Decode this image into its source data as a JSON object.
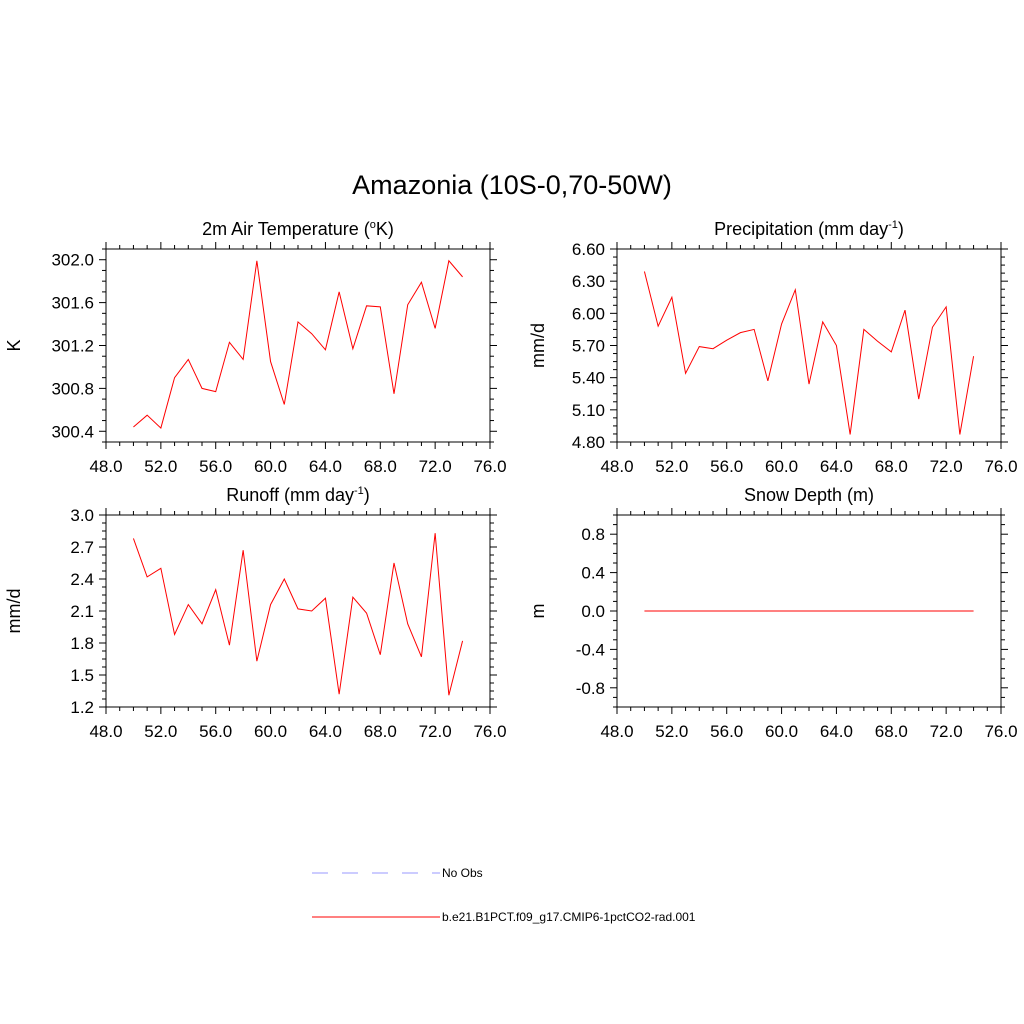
{
  "figure": {
    "title": "Amazonia (10S-0,70-50W)",
    "legend": {
      "entries": [
        {
          "label": "No Obs",
          "color": "#9999ff",
          "dash": true
        },
        {
          "label": "b.e21.B1PCT.f09_g17.CMIP6-1pctCO2-rad.001",
          "color": "#ff0000",
          "dash": false
        }
      ]
    }
  },
  "chart_data": [
    {
      "type": "line",
      "title": "2m Air Temperature (",
      "title_sup": "o",
      "title_tail": "K)",
      "ylabel": "K",
      "xlim": [
        48,
        76
      ],
      "ylim": [
        300.3,
        302.1
      ],
      "xticks": [
        48.0,
        52.0,
        56.0,
        60.0,
        64.0,
        68.0,
        72.0,
        76.0
      ],
      "xtick_labels": [
        "48.0",
        "52.0",
        "56.0",
        "60.0",
        "64.0",
        "68.0",
        "72.0",
        "76.0"
      ],
      "yticks": [
        300.4,
        300.8,
        301.2,
        301.6,
        302.0
      ],
      "ytick_labels": [
        "300.4",
        "300.8",
        "301.2",
        "301.6",
        "302.0"
      ],
      "series": [
        {
          "name": "b.e21.B1PCT.f09_g17.CMIP6-1pctCO2-rad.001",
          "color": "#ff0000",
          "x": [
            50,
            51,
            52,
            53,
            54,
            55,
            56,
            57,
            58,
            59,
            60,
            61,
            62,
            63,
            64,
            65,
            66,
            67,
            68,
            69,
            70,
            71,
            72,
            73,
            74
          ],
          "y": [
            300.44,
            300.55,
            300.43,
            300.9,
            301.07,
            300.8,
            300.77,
            301.23,
            301.07,
            301.99,
            301.05,
            300.65,
            301.42,
            301.31,
            301.16,
            301.7,
            301.17,
            301.57,
            301.56,
            300.75,
            301.58,
            301.79,
            301.36,
            301.99,
            301.84
          ]
        }
      ]
    },
    {
      "type": "line",
      "title": "Precipitation (mm day",
      "title_sup": "-1",
      "title_tail": ")",
      "ylabel": "mm/d",
      "xlim": [
        48,
        76
      ],
      "ylim": [
        4.8,
        6.6
      ],
      "xticks": [
        48.0,
        52.0,
        56.0,
        60.0,
        64.0,
        68.0,
        72.0,
        76.0
      ],
      "xtick_labels": [
        "48.0",
        "52.0",
        "56.0",
        "60.0",
        "64.0",
        "68.0",
        "72.0",
        "76.0"
      ],
      "yticks": [
        4.8,
        5.1,
        5.4,
        5.7,
        6.0,
        6.3,
        6.6
      ],
      "ytick_labels": [
        "4.80",
        "5.10",
        "5.40",
        "5.70",
        "6.00",
        "6.30",
        "6.60"
      ],
      "series": [
        {
          "name": "b.e21.B1PCT.f09_g17.CMIP6-1pctCO2-rad.001",
          "color": "#ff0000",
          "x": [
            50,
            51,
            52,
            53,
            54,
            55,
            56,
            57,
            58,
            59,
            60,
            61,
            62,
            63,
            64,
            65,
            66,
            67,
            68,
            69,
            70,
            71,
            72,
            73,
            74
          ],
          "y": [
            6.39,
            5.88,
            6.15,
            5.44,
            5.69,
            5.67,
            5.75,
            5.82,
            5.85,
            5.37,
            5.9,
            6.22,
            5.34,
            5.92,
            5.7,
            4.87,
            5.85,
            5.74,
            5.64,
            6.03,
            5.2,
            5.87,
            6.06,
            4.87,
            5.6
          ]
        }
      ]
    },
    {
      "type": "line",
      "title": "Runoff (mm day",
      "title_sup": "-1",
      "title_tail": ")",
      "ylabel": "mm/d",
      "xlim": [
        48,
        76
      ],
      "ylim": [
        1.2,
        3.0
      ],
      "xticks": [
        48.0,
        52.0,
        56.0,
        60.0,
        64.0,
        68.0,
        72.0,
        76.0
      ],
      "xtick_labels": [
        "48.0",
        "52.0",
        "56.0",
        "60.0",
        "64.0",
        "68.0",
        "72.0",
        "76.0"
      ],
      "yticks": [
        1.2,
        1.5,
        1.8,
        2.1,
        2.4,
        2.7,
        3.0
      ],
      "ytick_labels": [
        "1.2",
        "1.5",
        "1.8",
        "2.1",
        "2.4",
        "2.7",
        "3.0"
      ],
      "series": [
        {
          "name": "b.e21.B1PCT.f09_g17.CMIP6-1pctCO2-rad.001",
          "color": "#ff0000",
          "x": [
            50,
            51,
            52,
            53,
            54,
            55,
            56,
            57,
            58,
            59,
            60,
            61,
            62,
            63,
            64,
            65,
            66,
            67,
            68,
            69,
            70,
            71,
            72,
            73,
            74
          ],
          "y": [
            2.78,
            2.42,
            2.5,
            1.88,
            2.16,
            1.98,
            2.3,
            1.78,
            2.67,
            1.63,
            2.16,
            2.4,
            2.12,
            2.1,
            2.22,
            1.32,
            2.23,
            2.08,
            1.69,
            2.55,
            1.98,
            1.67,
            2.83,
            1.31,
            1.82
          ]
        }
      ]
    },
    {
      "type": "line",
      "title": "Snow Depth (m)",
      "title_sup": "",
      "title_tail": "",
      "ylabel": "m",
      "xlim": [
        48,
        76
      ],
      "ylim": [
        -1.0,
        1.0
      ],
      "xticks": [
        48.0,
        52.0,
        56.0,
        60.0,
        64.0,
        68.0,
        72.0,
        76.0
      ],
      "xtick_labels": [
        "48.0",
        "52.0",
        "56.0",
        "60.0",
        "64.0",
        "68.0",
        "72.0",
        "76.0"
      ],
      "yticks": [
        -0.8,
        -0.4,
        0.0,
        0.4,
        0.8
      ],
      "ytick_labels": [
        "-0.8",
        "-0.4",
        "0.0",
        "0.4",
        "0.8"
      ],
      "series": [
        {
          "name": "b.e21.B1PCT.f09_g17.CMIP6-1pctCO2-rad.001",
          "color": "#ff0000",
          "x": [
            50,
            51,
            52,
            53,
            54,
            55,
            56,
            57,
            58,
            59,
            60,
            61,
            62,
            63,
            64,
            65,
            66,
            67,
            68,
            69,
            70,
            71,
            72,
            73,
            74
          ],
          "y": [
            0,
            0,
            0,
            0,
            0,
            0,
            0,
            0,
            0,
            0,
            0,
            0,
            0,
            0,
            0,
            0,
            0,
            0,
            0,
            0,
            0,
            0,
            0,
            0,
            0
          ]
        }
      ]
    }
  ]
}
